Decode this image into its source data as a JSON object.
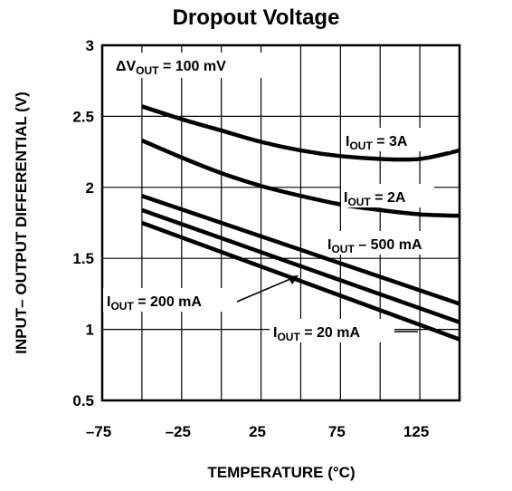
{
  "chart_data": {
    "type": "line",
    "title": "Dropout Voltage",
    "xlabel": "TEMPERATURE (°C)",
    "ylabel": "INPUT– OUTPUT DIFFERENTIAL (V)",
    "xlim": [
      -75,
      150
    ],
    "ylim": [
      0.5,
      3
    ],
    "xticks": [
      -75,
      -25,
      25,
      75,
      125
    ],
    "xtick_labels": [
      "–75",
      "–25",
      "25",
      "75",
      "125"
    ],
    "yticks": [
      0.5,
      1,
      1.5,
      2,
      2.5,
      3
    ],
    "ytick_labels": [
      "0.5",
      "1",
      "1.5",
      "2",
      "2.5",
      "3"
    ],
    "grid": true,
    "condition": {
      "prefix": "ΔV",
      "sub": "OUT",
      "suffix": " = 100 mV"
    },
    "series": [
      {
        "label_prefix": "I",
        "label_sub": "OUT",
        "label_suffix": " = 3A",
        "x": [
          -50,
          -25,
          0,
          25,
          50,
          75,
          100,
          125,
          150
        ],
        "y": [
          2.57,
          2.48,
          2.4,
          2.32,
          2.26,
          2.22,
          2.2,
          2.2,
          2.26
        ]
      },
      {
        "label_prefix": "I",
        "label_sub": "OUT",
        "label_suffix": " = 2A",
        "x": [
          -50,
          -25,
          0,
          25,
          50,
          75,
          100,
          125,
          150
        ],
        "y": [
          2.33,
          2.21,
          2.1,
          2.01,
          1.94,
          1.88,
          1.84,
          1.81,
          1.8
        ]
      },
      {
        "label_prefix": "I",
        "label_sub": "OUT",
        "label_suffix": " – 500 mA",
        "x": [
          -50,
          150
        ],
        "y": [
          1.94,
          1.18
        ]
      },
      {
        "label_prefix": "I",
        "label_sub": "OUT",
        "label_suffix": " = 200 mA",
        "x": [
          -50,
          150
        ],
        "y": [
          1.84,
          1.05
        ]
      },
      {
        "label_prefix": "I",
        "label_sub": "OUT",
        "label_suffix": " = 20 mA",
        "x": [
          -50,
          150
        ],
        "y": [
          1.75,
          0.93
        ]
      }
    ]
  }
}
